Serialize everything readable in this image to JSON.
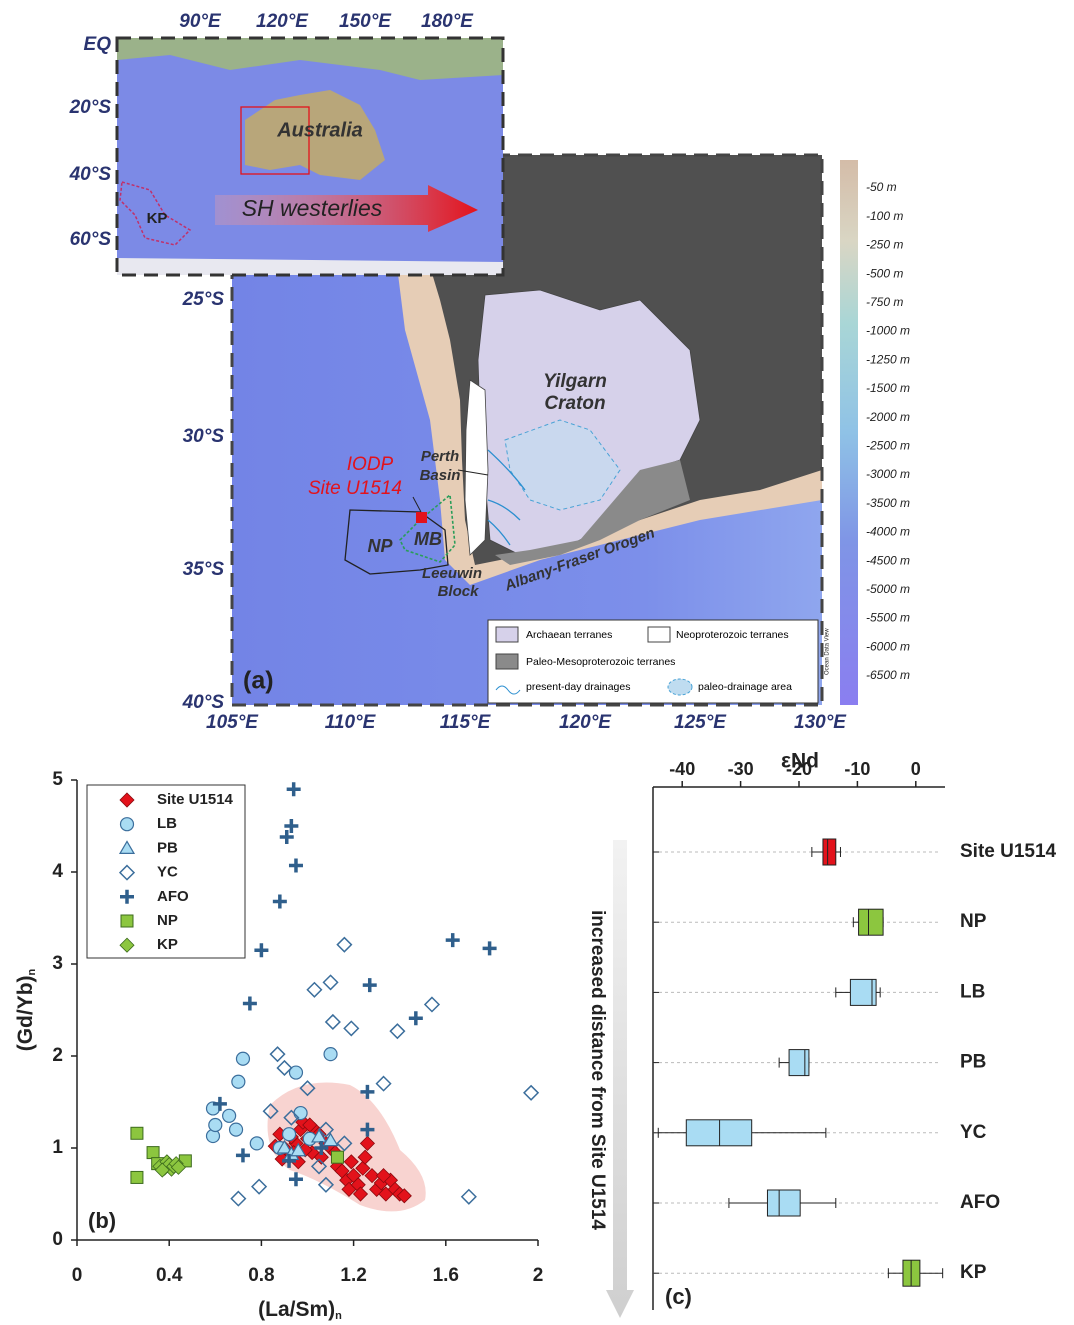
{
  "map": {
    "lon_labels": [
      "105°E",
      "110°E",
      "115°E",
      "120°E",
      "125°E",
      "130°E"
    ],
    "lat_labels": [
      "25°S",
      "30°S",
      "35°S",
      "40°S"
    ],
    "inset_lon_labels": [
      "90°E",
      "120°E",
      "150°E",
      "180°E"
    ],
    "inset_lat_labels": [
      "EQ",
      "20°S",
      "40°S",
      "60°S"
    ],
    "inset_texts": {
      "australia": "Australia",
      "westerlies": "SH westerlies",
      "kp": "KP"
    },
    "colorbar_labels": [
      "-50 m",
      "-100 m",
      "-250 m",
      "-500 m",
      "-750 m",
      "-1000 m",
      "-1250 m",
      "-1500 m",
      "-2000 m",
      "-2500 m",
      "-3000 m",
      "-3500 m",
      "-4000 m",
      "-4500 m",
      "-5000 m",
      "-5500 m",
      "-6000 m",
      "-6500 m"
    ],
    "texts": {
      "craton_1": "Yilgarn",
      "craton_2": "Craton",
      "perth_1": "Perth",
      "perth_2": "Basin",
      "site_1": "IODP",
      "site_2": "Site U1514",
      "np": "NP",
      "mb": "MB",
      "leeuwin_1": "Leeuwin",
      "leeuwin_2": "Block",
      "afo": "Albany-Fraser Orogen",
      "panel": "(a)",
      "odv": "Ocean Data View"
    },
    "legend": {
      "archaean": "Archaean terranes",
      "neoproterozoic": "Neoproterozoic terranes",
      "paleo_meso": "Paleo-Mesoproterozoic terranes",
      "drainages": "present-day drainages",
      "paleo_drainage": "paleo-drainage area"
    }
  },
  "chart_data": [
    {
      "type": "scatter",
      "panel_label": "(b)",
      "x_label": "(La/Sm)",
      "x_label_sub": "n",
      "y_label": "(Gd/Yb)",
      "y_label_sub": "n",
      "xlim": [
        0,
        2
      ],
      "ylim": [
        0,
        5
      ],
      "xticks": [
        0,
        0.4,
        0.8,
        1.2,
        1.6,
        2
      ],
      "yticks": [
        0,
        1,
        2,
        3,
        4,
        5
      ],
      "series": [
        {
          "name": "Site U1514",
          "color": "#e3121b",
          "marker": "diamond",
          "filled": true,
          "x": [
            0.88,
            0.9,
            0.92,
            0.95,
            0.97,
            0.98,
            1.0,
            1.02,
            1.03,
            1.05,
            1.06,
            1.08,
            0.93,
            0.96,
            0.99,
            1.01,
            0.86,
            0.89,
            1.1,
            1.13,
            1.15,
            1.17,
            1.18,
            1.2,
            1.22,
            1.24,
            1.26,
            1.25,
            1.28,
            1.3,
            1.32,
            1.34,
            1.36,
            1.38,
            1.4,
            1.42,
            1.19,
            1.23,
            1.12,
            0.94,
            1.33
          ],
          "values": [
            1.15,
            1.0,
            0.9,
            1.05,
            1.2,
            1.28,
            1.1,
            0.95,
            1.2,
            1.15,
            0.9,
            1.05,
            1.12,
            0.85,
            0.98,
            1.25,
            1.02,
            0.88,
            1.0,
            0.8,
            0.75,
            0.65,
            0.55,
            0.7,
            0.6,
            0.78,
            1.05,
            0.9,
            0.7,
            0.55,
            0.62,
            0.5,
            0.65,
            0.55,
            0.5,
            0.48,
            0.85,
            0.5,
            0.95,
            0.95,
            0.7
          ]
        },
        {
          "name": "LB",
          "color": "#a9dcf3",
          "marker": "circle",
          "filled": true,
          "x": [
            0.59,
            0.59,
            0.6,
            0.66,
            0.69,
            0.7,
            0.72,
            0.78,
            0.95,
            0.97,
            1.1,
            0.92,
            1.01,
            0.88
          ],
          "values": [
            1.43,
            1.13,
            1.25,
            1.35,
            1.2,
            1.72,
            1.97,
            1.05,
            1.82,
            1.38,
            2.02,
            1.15,
            1.1,
            1.0
          ]
        },
        {
          "name": "PB",
          "color": "#a9dcf3",
          "marker": "triangle",
          "filled": true,
          "x": [
            0.9,
            0.93,
            1.05,
            1.1,
            0.96
          ],
          "values": [
            1.0,
            0.93,
            1.12,
            1.08,
            0.97
          ]
        },
        {
          "name": "YC",
          "color": "#3b6e9c",
          "marker": "diamond",
          "filled": false,
          "x": [
            0.7,
            0.79,
            0.84,
            0.87,
            0.9,
            0.93,
            1.0,
            1.03,
            1.1,
            1.11,
            1.16,
            1.19,
            1.33,
            1.39,
            1.54,
            1.7,
            1.97,
            1.08,
            1.05,
            1.16,
            1.08
          ],
          "values": [
            0.45,
            0.58,
            1.4,
            2.02,
            1.87,
            1.33,
            1.65,
            2.72,
            2.8,
            2.37,
            3.21,
            2.3,
            1.7,
            2.27,
            2.56,
            0.47,
            1.6,
            0.6,
            0.8,
            1.05,
            1.2
          ]
        },
        {
          "name": "AFO",
          "color": "#2f5f8c",
          "marker": "plus",
          "filled": true,
          "x": [
            0.62,
            0.72,
            0.75,
            0.8,
            0.88,
            0.91,
            0.93,
            0.94,
            0.95,
            0.95,
            1.06,
            1.27,
            1.26,
            1.26,
            1.47,
            1.63,
            1.79,
            0.92
          ],
          "values": [
            1.48,
            0.92,
            2.57,
            3.15,
            3.68,
            4.38,
            4.5,
            4.9,
            4.07,
            0.66,
            1.0,
            2.77,
            1.61,
            1.2,
            2.41,
            3.26,
            3.17,
            0.86
          ]
        },
        {
          "name": "NP",
          "color": "#8cc63f",
          "marker": "square",
          "filled": true,
          "x": [
            0.26,
            0.26,
            0.33,
            0.35,
            0.47,
            1.13
          ],
          "values": [
            1.16,
            0.68,
            0.95,
            0.83,
            0.86,
            0.9
          ]
        },
        {
          "name": "KP",
          "color": "#8cc63f",
          "marker": "diamond",
          "filled": true,
          "x": [
            0.36,
            0.38,
            0.39,
            0.4,
            0.41,
            0.42,
            0.43,
            0.44,
            0.37
          ],
          "values": [
            0.8,
            0.78,
            0.85,
            0.82,
            0.77,
            0.8,
            0.83,
            0.79,
            0.76
          ]
        }
      ]
    },
    {
      "type": "box",
      "panel_label": "(c)",
      "x_label": "εNd",
      "arrow_label": "increased distance from Site U1514",
      "xlim": [
        -45,
        5
      ],
      "xticks": [
        -40,
        -30,
        -20,
        -10,
        0
      ],
      "categories": [
        "Site U1514",
        "NP",
        "LB",
        "PB",
        "YC",
        "AFO",
        "KP"
      ],
      "colors": [
        "#e3121b",
        "#8cc63f",
        "#a9dcf3",
        "#a9dcf3",
        "#a9dcf3",
        "#a9dcf3",
        "#8cc63f"
      ],
      "min": [
        -17.8,
        -10.7,
        -13.7,
        -23.4,
        -44.1,
        -32,
        -4.7
      ],
      "q1": [
        -15.9,
        -9.8,
        -11.2,
        -21.7,
        -39.3,
        -25.4,
        -2.2
      ],
      "median": [
        -15.1,
        -8.1,
        -7.5,
        -19,
        -33.6,
        -23.4,
        -0.8
      ],
      "q3": [
        -13.7,
        -5.6,
        -6.8,
        -18.3,
        -28.1,
        -19.8,
        0.7
      ],
      "max": [
        -12.9,
        -5.6,
        -6.1,
        -18.3,
        -15.4,
        -13.7,
        4.6
      ]
    }
  ]
}
